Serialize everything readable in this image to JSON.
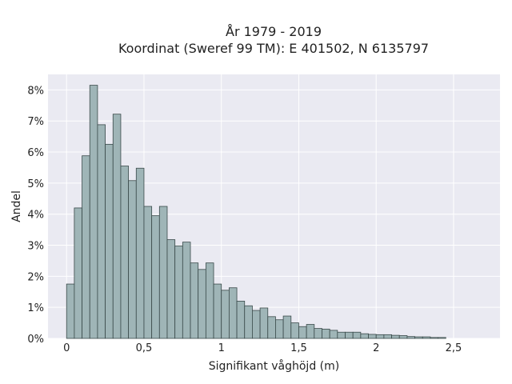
{
  "chart_data": {
    "type": "bar",
    "title": "År 1979 - 2019",
    "subtitle": "Koordinat (Sweref 99 TM): E 401502, N 6135797",
    "xlabel": "Signifikant våghöjd (m)",
    "ylabel": "Andel",
    "xlim": [
      -0.12,
      2.8
    ],
    "ylim": [
      0,
      8.5
    ],
    "x_ticks": [
      0,
      0.5,
      1,
      1.5,
      2,
      2.5
    ],
    "x_tick_labels": [
      "0",
      "0,5",
      "1",
      "1,5",
      "2",
      "2,5"
    ],
    "y_ticks": [
      0,
      1,
      2,
      3,
      4,
      5,
      6,
      7,
      8
    ],
    "y_tick_labels": [
      "0%",
      "1%",
      "2%",
      "3%",
      "4%",
      "5%",
      "6%",
      "7%",
      "8%"
    ],
    "bin_start": 0.0,
    "bin_width": 0.05,
    "values": [
      1.75,
      4.2,
      5.88,
      8.15,
      6.88,
      6.25,
      7.22,
      5.55,
      5.08,
      5.48,
      4.25,
      3.95,
      4.25,
      3.18,
      2.98,
      3.1,
      2.43,
      2.22,
      2.43,
      1.75,
      1.55,
      1.63,
      1.2,
      1.05,
      0.9,
      0.98,
      0.7,
      0.6,
      0.72,
      0.5,
      0.38,
      0.45,
      0.32,
      0.3,
      0.26,
      0.2,
      0.2,
      0.2,
      0.15,
      0.13,
      0.12,
      0.12,
      0.1,
      0.09,
      0.06,
      0.05,
      0.05,
      0.03,
      0.03
    ],
    "grid": true,
    "colors": {
      "background": "#eaeaf2",
      "grid": "#ffffff",
      "bar_fill": "#9fb5b7",
      "bar_edge": "#3a4a4a"
    }
  }
}
